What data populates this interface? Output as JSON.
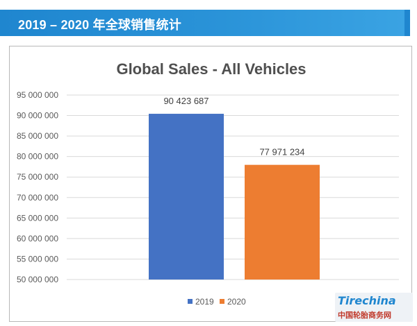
{
  "slide": {
    "title": "2019 – 2020 年全球销售统计"
  },
  "watermark": {
    "logo": "Tirechina",
    "text": "中国轮胎商务网"
  },
  "colors": {
    "header": "#1f86cf",
    "series_2019": "#4472c4",
    "series_2020": "#ed7d31",
    "grid": "#d9d9d9"
  },
  "chart_data": {
    "type": "bar",
    "title": "Global Sales - All Vehicles",
    "xlabel": "",
    "ylabel": "",
    "categories": [
      "2019",
      "2020"
    ],
    "values": [
      90423687,
      77971234
    ],
    "value_labels": [
      "90 423 687",
      "77 971 234"
    ],
    "ylim": [
      50000000,
      95000000
    ],
    "yticks": [
      50000000,
      55000000,
      60000000,
      65000000,
      70000000,
      75000000,
      80000000,
      85000000,
      90000000,
      95000000
    ],
    "ytick_labels": [
      "50 000 000",
      "55 000 000",
      "60 000 000",
      "65 000 000",
      "70 000 000",
      "75 000 000",
      "80 000 000",
      "85 000 000",
      "90 000 000",
      "95 000 000"
    ],
    "grid": true,
    "legend": {
      "position": "bottom",
      "entries": [
        "2019",
        "2020"
      ]
    }
  }
}
